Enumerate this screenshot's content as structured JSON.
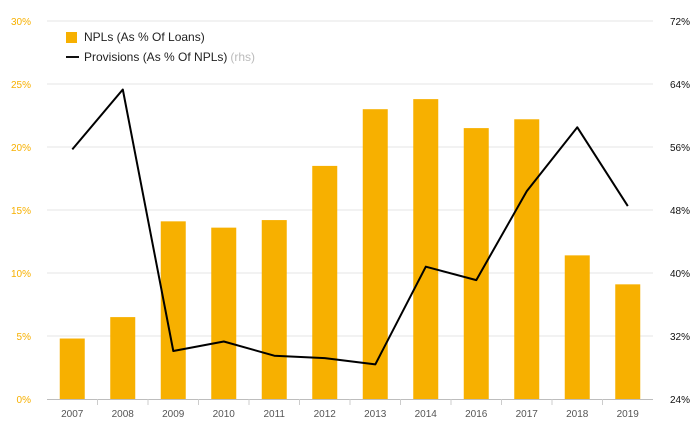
{
  "chart_data": {
    "type": "bar+line",
    "categories": [
      "2007",
      "2008",
      "2009",
      "2010",
      "2011",
      "2012",
      "2013",
      "2014",
      "2016",
      "2017",
      "2018",
      "2019"
    ],
    "series": [
      {
        "name": "NPLs (As % Of Loans)",
        "kind": "bar",
        "axis": "left",
        "color": "#f7b000",
        "values": [
          4.8,
          6.5,
          14.1,
          13.6,
          14.2,
          18.5,
          23.0,
          23.8,
          21.5,
          22.2,
          11.4,
          9.1
        ]
      },
      {
        "name": "Provisions (As % Of NPLs)",
        "kind": "line",
        "axis": "right",
        "color": "#000000",
        "values": [
          55.7,
          63.3,
          30.1,
          31.3,
          29.5,
          29.2,
          28.4,
          40.8,
          39.1,
          50.4,
          58.5,
          48.5
        ]
      }
    ],
    "y_left": {
      "min": 0,
      "max": 30,
      "ticks": [
        "0%",
        "5%",
        "10%",
        "15%",
        "20%",
        "25%",
        "30%"
      ],
      "color": "#f7b000"
    },
    "y_right": {
      "min": 24,
      "max": 72,
      "ticks": [
        "24%",
        "32%",
        "40%",
        "48%",
        "56%",
        "64%",
        "72%"
      ],
      "color": "#111111"
    },
    "grid": true
  },
  "legend": {
    "bar_label": "NPLs (As % Of Loans)",
    "line_label": "Provisions (As % Of NPLs)",
    "line_note": "(rhs)"
  }
}
